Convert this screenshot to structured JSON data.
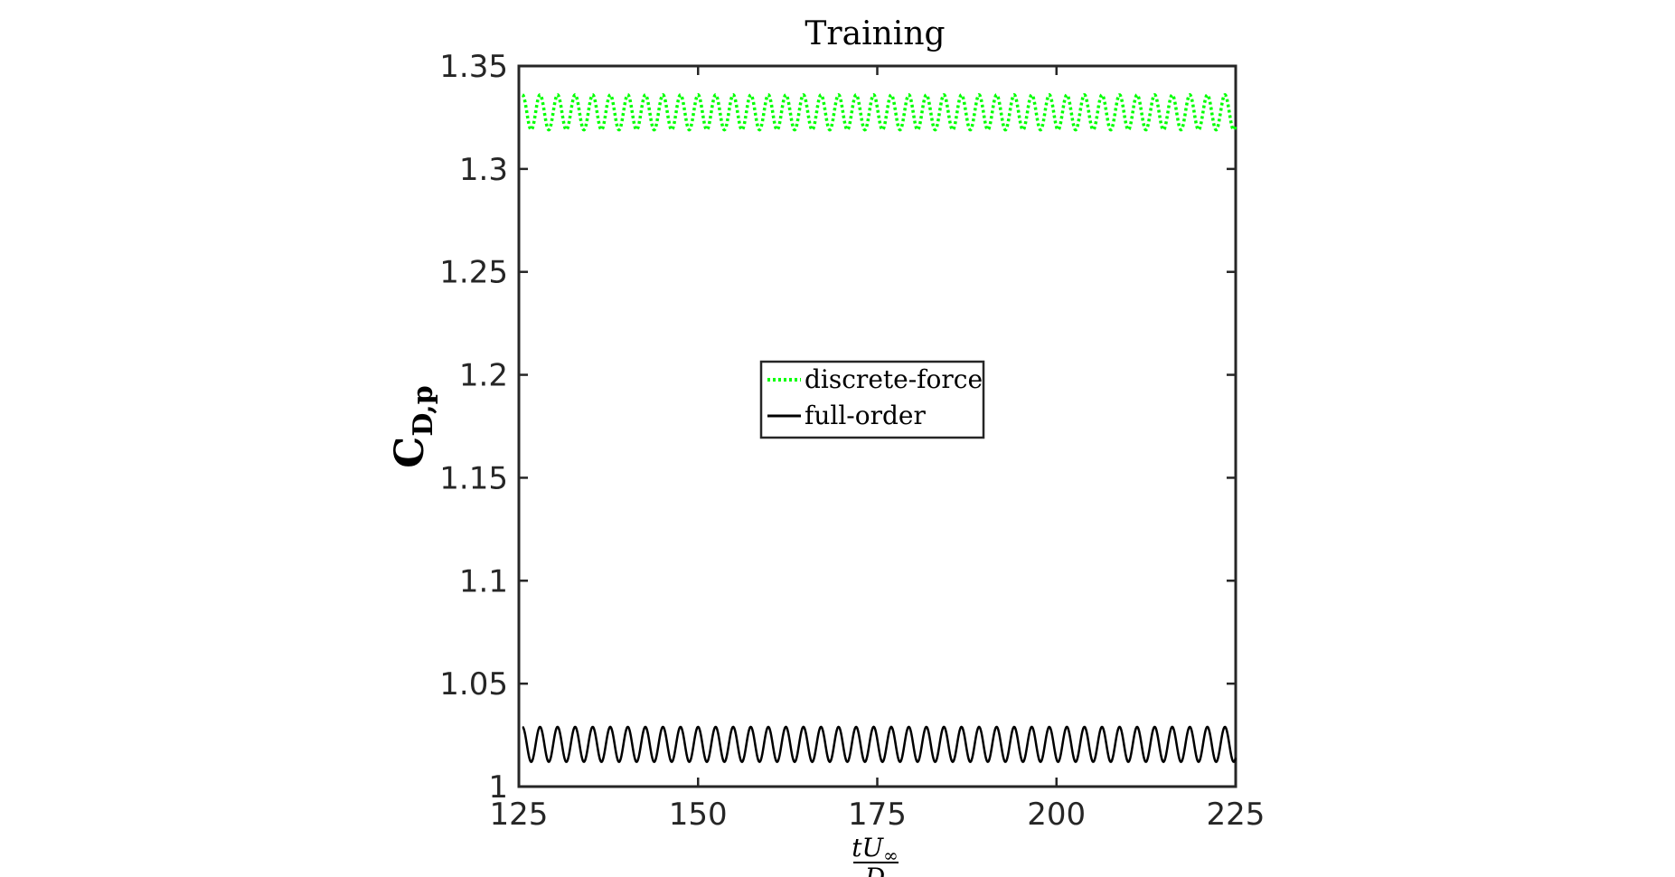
{
  "chart_data": {
    "type": "line",
    "title": "Training",
    "xlabel": {
      "numerator": "tU∞",
      "numerator_main": "tU",
      "numerator_sub": "∞",
      "denominator": "D"
    },
    "ylabel": {
      "main": "C",
      "sub": "D,p"
    },
    "xlim": [
      125,
      225
    ],
    "ylim": [
      1.0,
      1.35
    ],
    "xticks": [
      125,
      150,
      175,
      200,
      225
    ],
    "yticks": [
      1.0,
      1.05,
      1.1,
      1.15,
      1.2,
      1.25,
      1.3,
      1.35
    ],
    "ytick_labels": [
      "1",
      "1.05",
      "1.1",
      "1.15",
      "1.2",
      "1.25",
      "1.3",
      "1.35"
    ],
    "grid": false,
    "legend_position": "center",
    "series": [
      {
        "name": "discrete-force",
        "color": "#00ff00",
        "style": "dotted",
        "x_start": 125.5,
        "x_end": 225,
        "mean": 1.3275,
        "amplitude": 0.0085,
        "period": 2.45,
        "phase": 0.0
      },
      {
        "name": "full-order",
        "color": "#000000",
        "style": "solid",
        "x_start": 125.5,
        "x_end": 225,
        "mean": 1.0205,
        "amplitude": 0.0085,
        "period": 2.45,
        "phase": 0.0
      }
    ]
  }
}
